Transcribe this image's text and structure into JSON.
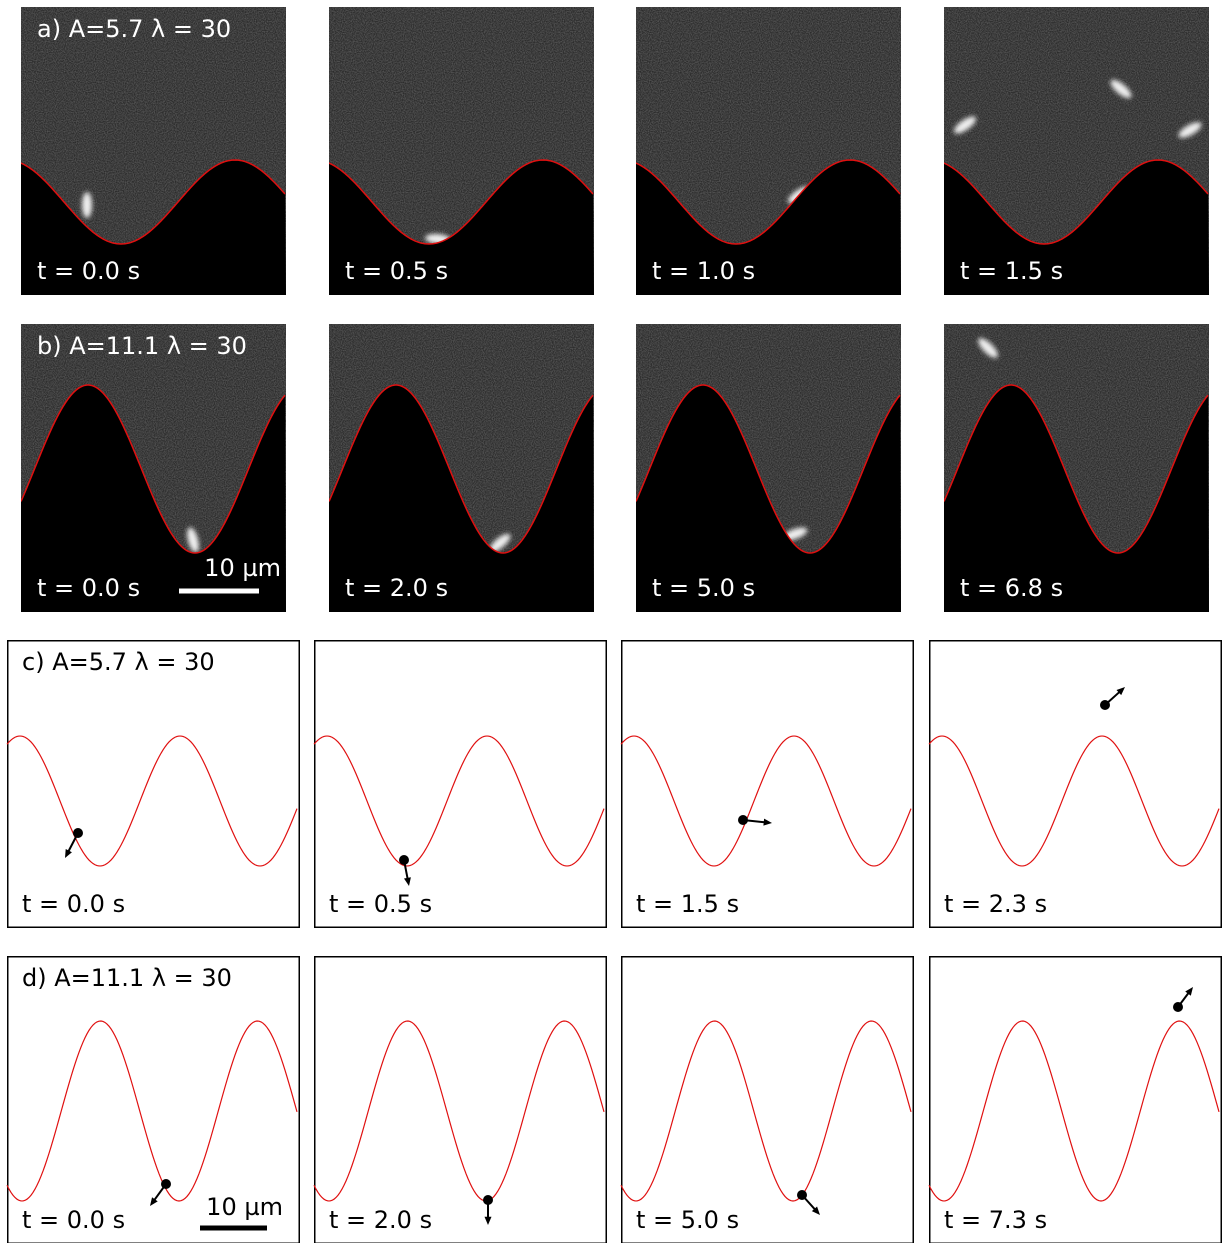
{
  "rows": [
    {
      "label": "a) A=5.7 λ = 30",
      "panels": [
        {
          "time": "t = 0.0 s"
        },
        {
          "time": "t = 0.5 s"
        },
        {
          "time": "t = 1.0 s"
        },
        {
          "time": "t = 1.5 s"
        }
      ]
    },
    {
      "label": "b) A=11.1 λ = 30",
      "scale_bar": "10 µm",
      "panels": [
        {
          "time": "t = 0.0 s"
        },
        {
          "time": "t = 2.0 s"
        },
        {
          "time": "t = 5.0 s"
        },
        {
          "time": "t = 6.8 s"
        }
      ]
    },
    {
      "label": "c) A=5.7 λ = 30",
      "panels": [
        {
          "time": "t = 0.0 s"
        },
        {
          "time": "t = 0.5 s"
        },
        {
          "time": "t = 1.5 s"
        },
        {
          "time": "t = 2.3 s"
        }
      ]
    },
    {
      "label": "d) A=11.1 λ = 30",
      "scale_bar": "10 µm",
      "panels": [
        {
          "time": "t = 0.0 s"
        },
        {
          "time": "t = 2.0 s"
        },
        {
          "time": "t = 5.0 s"
        },
        {
          "time": "t = 7.3 s"
        }
      ]
    }
  ]
}
